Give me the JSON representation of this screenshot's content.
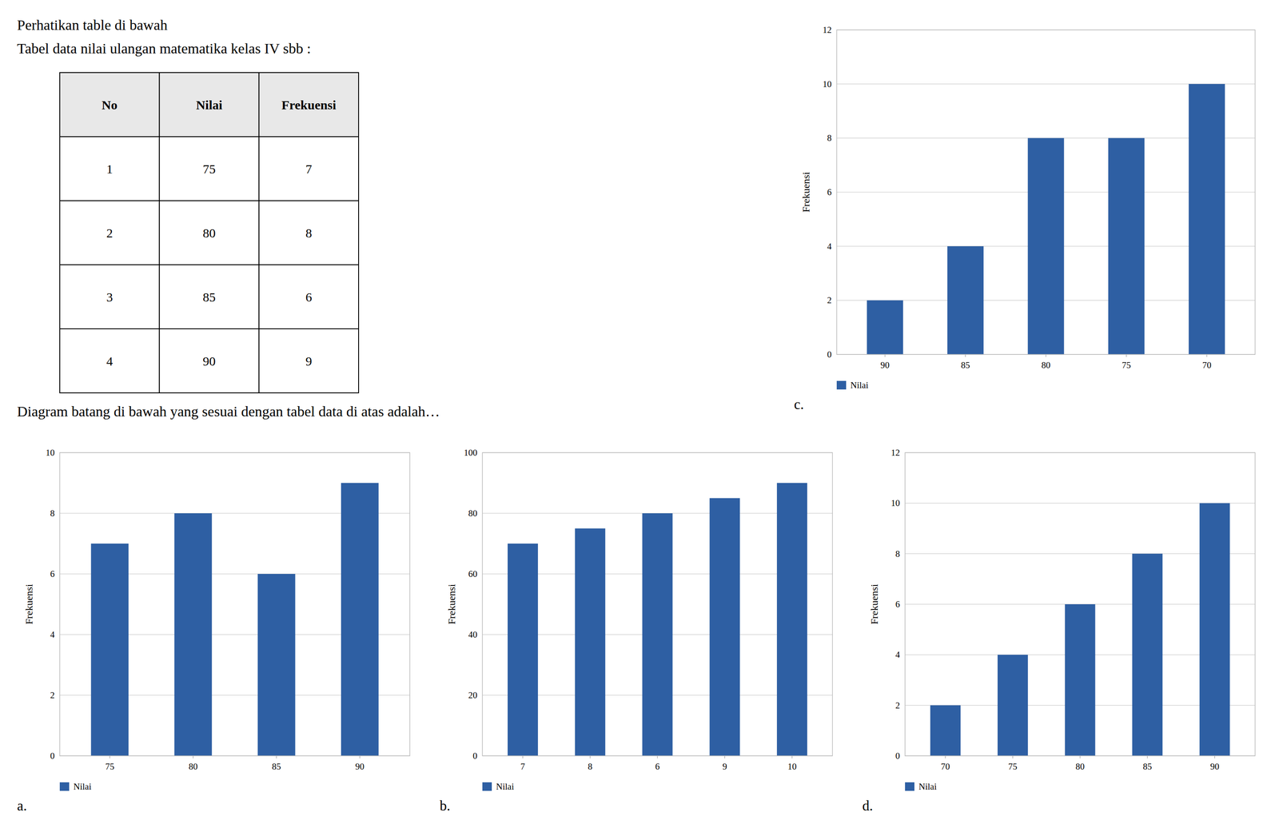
{
  "chart_data": [
    {
      "type": "table",
      "title": "Perhatikan table di bawah",
      "subtitle": "Tabel data nilai ulangan matematika kelas IV sbb :",
      "columns": [
        "No",
        "Nilai",
        "Frekuensi"
      ],
      "rows": [
        [
          1,
          75,
          7
        ],
        [
          2,
          80,
          8
        ],
        [
          3,
          85,
          6
        ],
        [
          4,
          90,
          9
        ]
      ],
      "annotations": [
        "Diagram batang di bawah yang sesuai dengan tabel data di atas adalah…"
      ]
    },
    {
      "type": "bar",
      "title": "a.",
      "categories": [
        "75",
        "80",
        "85",
        "90"
      ],
      "series": [
        {
          "name": "Nilai",
          "color": "#2E5FA3",
          "values": [
            7,
            8,
            6,
            9
          ]
        }
      ],
      "y_label": "Frekuensi",
      "ylim": [
        0,
        10
      ],
      "yticks": [
        0,
        2,
        4,
        6,
        8,
        10
      ],
      "grid": true,
      "legend": "lower left"
    },
    {
      "type": "bar",
      "title": "b.",
      "categories": [
        "7",
        "8",
        "6",
        "9",
        "10"
      ],
      "series": [
        {
          "name": "Nilai",
          "color": "#2E5FA3",
          "values": [
            70,
            75,
            80,
            85,
            90
          ]
        }
      ],
      "y_label": "Frekuensi",
      "ylim": [
        0,
        100
      ],
      "yticks": [
        0,
        20,
        40,
        60,
        80,
        100
      ],
      "grid": true,
      "legend": "lower left"
    },
    {
      "type": "bar",
      "title": "c.",
      "categories": [
        "90",
        "85",
        "80",
        "75",
        "70"
      ],
      "series": [
        {
          "name": "Nilai",
          "color": "#2E5FA3",
          "values": [
            2,
            4,
            8,
            8,
            10
          ]
        }
      ],
      "y_label": "Frekuensi",
      "ylim": [
        0,
        12
      ],
      "yticks": [
        0,
        2,
        4,
        6,
        8,
        10,
        12
      ],
      "grid": true,
      "legend": "lower left"
    },
    {
      "type": "bar",
      "title": "d.",
      "categories": [
        "70",
        "75",
        "80",
        "85",
        "90"
      ],
      "series": [
        {
          "name": "Nilai",
          "color": "#2E5FA3",
          "values": [
            2,
            4,
            6,
            8,
            10
          ]
        }
      ],
      "y_label": "Frekuensi",
      "ylim": [
        0,
        12
      ],
      "yticks": [
        0,
        2,
        4,
        6,
        8,
        10,
        12
      ],
      "grid": true,
      "legend": "lower left"
    }
  ]
}
